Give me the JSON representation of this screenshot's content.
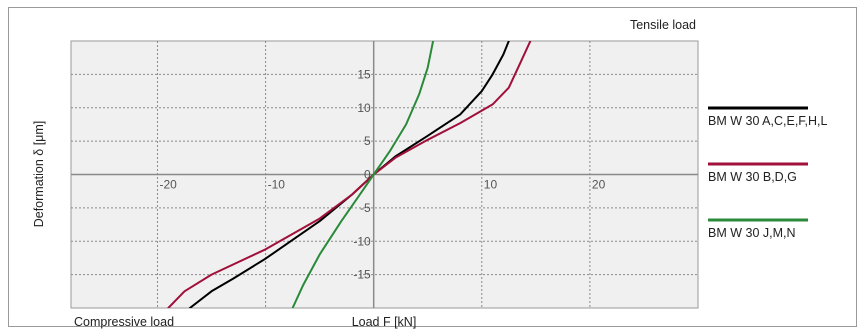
{
  "chart_data": {
    "type": "line",
    "title": "",
    "xlabel": "Load F [kN]",
    "ylabel": "Deformation δ [μm]",
    "annotations": {
      "top_right": "Tensile load",
      "bottom_left": "Compressive load"
    },
    "xlim": [
      -28,
      30
    ],
    "ylim": [
      -20,
      20
    ],
    "x_ticks": [
      -20,
      -10,
      10,
      20
    ],
    "y_ticks": [
      15,
      10,
      5,
      0,
      -5,
      -10,
      -15
    ],
    "grid": true,
    "legend_position": "right",
    "series": [
      {
        "name": "BM W 30 A,C,E,F,H,L",
        "color": "#000000",
        "points": [
          [
            -17,
            -20
          ],
          [
            -15,
            -17.5
          ],
          [
            -13,
            -15.6
          ],
          [
            -10,
            -12.6
          ],
          [
            -5,
            -7.0
          ],
          [
            -2,
            -3.0
          ],
          [
            0,
            0
          ],
          [
            2,
            2.7
          ],
          [
            5,
            5.8
          ],
          [
            8,
            9.0
          ],
          [
            10,
            12.5
          ],
          [
            11,
            15.0
          ],
          [
            12,
            18.0
          ],
          [
            12.5,
            20
          ]
        ]
      },
      {
        "name": "BM W 30 B,D,G",
        "color": "#a0103a",
        "points": [
          [
            -19,
            -20
          ],
          [
            -17.5,
            -17.5
          ],
          [
            -15,
            -15.0
          ],
          [
            -10,
            -11.2
          ],
          [
            -5,
            -6.6
          ],
          [
            -2,
            -3.0
          ],
          [
            0,
            0
          ],
          [
            2,
            2.5
          ],
          [
            5,
            5.2
          ],
          [
            8,
            7.7
          ],
          [
            11,
            10.5
          ],
          [
            12.5,
            13.0
          ],
          [
            13.5,
            16.5
          ],
          [
            14.5,
            20
          ]
        ]
      },
      {
        "name": "BM W 30 J,M,N",
        "color": "#2a8a3a",
        "points": [
          [
            -7.5,
            -20
          ],
          [
            -6.5,
            -16.5
          ],
          [
            -5,
            -12.0
          ],
          [
            -3,
            -7.0
          ],
          [
            -1.5,
            -3.5
          ],
          [
            0,
            0
          ],
          [
            1.5,
            3.5
          ],
          [
            3,
            7.5
          ],
          [
            4.2,
            12.0
          ],
          [
            5,
            16.0
          ],
          [
            5.5,
            20
          ]
        ]
      }
    ]
  }
}
